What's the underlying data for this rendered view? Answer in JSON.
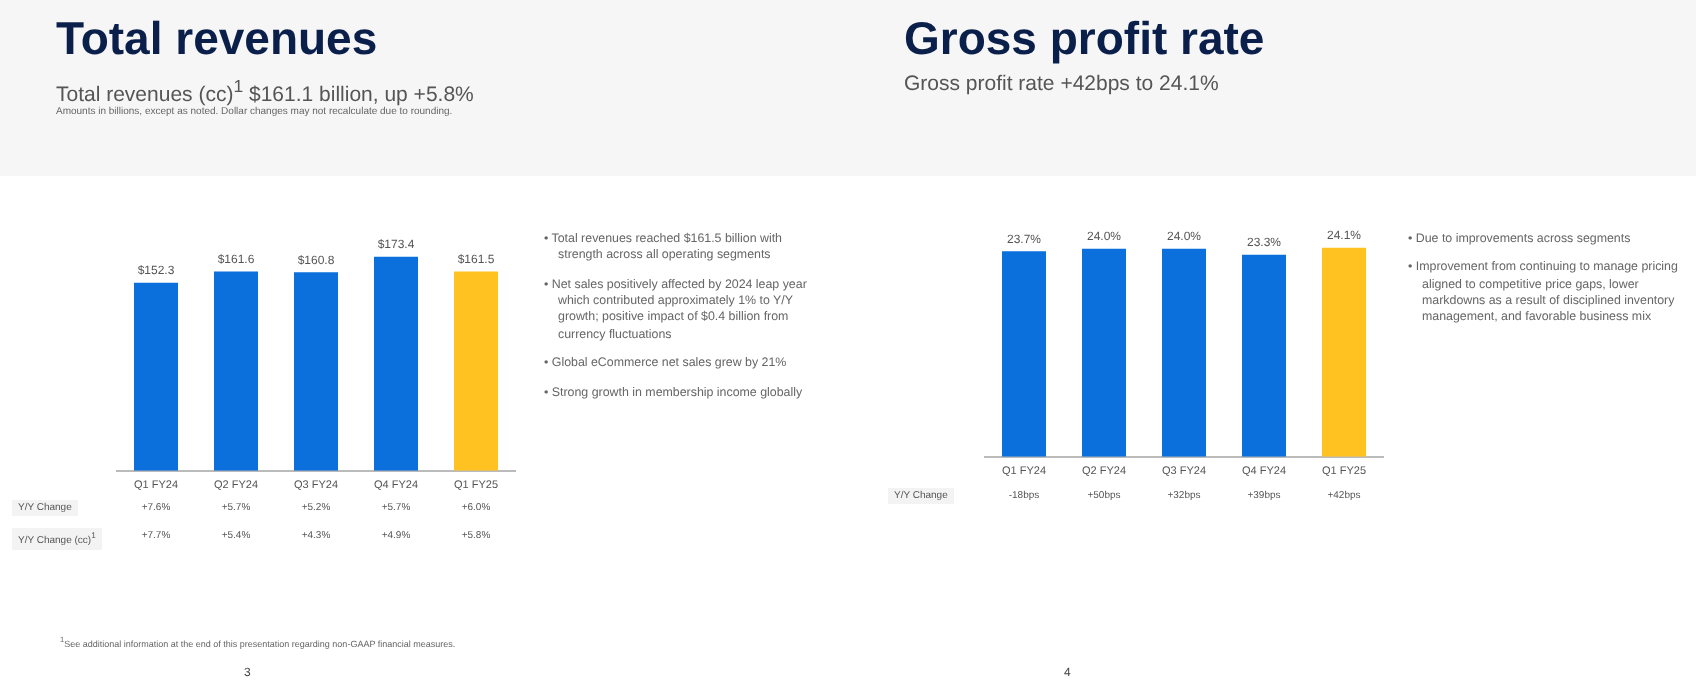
{
  "chart_data": [
    {
      "type": "bar",
      "title": "Total revenues",
      "subtitle": "Total revenues (cc)$^{1}$ $161.1 billion, up +5.8%",
      "categories": [
        "Q1 FY24",
        "Q2 FY24",
        "Q3 FY24",
        "Q4 FY24",
        "Q1 FY25"
      ],
      "values": [
        152.3,
        161.6,
        160.8,
        173.4,
        161.5
      ],
      "colors": [
        "#0b6fdc",
        "#0b6fdc",
        "#0b6fdc",
        "#0b6fdc",
        "#ffc220"
      ],
      "value_labels": [
        "$152.3",
        "$161.6",
        "$160.8",
        "$173.4",
        "$161.5"
      ],
      "grid": false,
      "legend": false,
      "annotations": [
        "Amounts in billions, except as noted.  Dollar changes may not recalculate due to rounding.",
        "Y/Y Change",
        "Y/Y Change (cc)$^{1}$",
        "+7.6%",
        "+5.7%",
        "+5.2%",
        "+5.7%",
        "+6.0%",
        "+7.7%",
        "+5.4%",
        "+4.3%",
        "+4.9%",
        "+5.8%",
        "• Total revenues reached $161.5 billion with strength across all operating segments",
        "• Net sales positively affected by 2024 leap year which contributed approximately 1% to Y/Y growth; positive impact of $0.4 billion from currency fluctuations",
        "• Global eCommerce net sales grew by 21%",
        "• Strong growth in membership income globally",
        "$^{1}$See additional information at the end of this presentation regarding non-GAAP financial measures.",
        "3"
      ]
    },
    {
      "type": "bar",
      "title": "Gross profit rate",
      "subtitle": "Gross profit rate +42bps to 24.1%",
      "categories": [
        "Q1 FY24",
        "Q2 FY24",
        "Q3 FY24",
        "Q4 FY24",
        "Q1 FY25"
      ],
      "values": [
        23.7,
        24.0,
        24.0,
        23.3,
        24.1
      ],
      "colors": [
        "#0b6fdc",
        "#0b6fdc",
        "#0b6fdc",
        "#0b6fdc",
        "#ffc220"
      ],
      "value_labels": [
        "23.7%",
        "24.0%",
        "24.0%",
        "23.3%",
        "24.1%"
      ],
      "grid": false,
      "legend": false,
      "annotations": [
        "Y/Y Change",
        "-18bps",
        "+50bps",
        "+32bps",
        "+39bps",
        "+42bps",
        "• Due to improvements across segments",
        "• Improvement from continuing to manage pricing aligned to competitive price gaps, lower markdowns as a result of disciplined inventory management, and favorable business mix",
        "4"
      ]
    }
  ]
}
